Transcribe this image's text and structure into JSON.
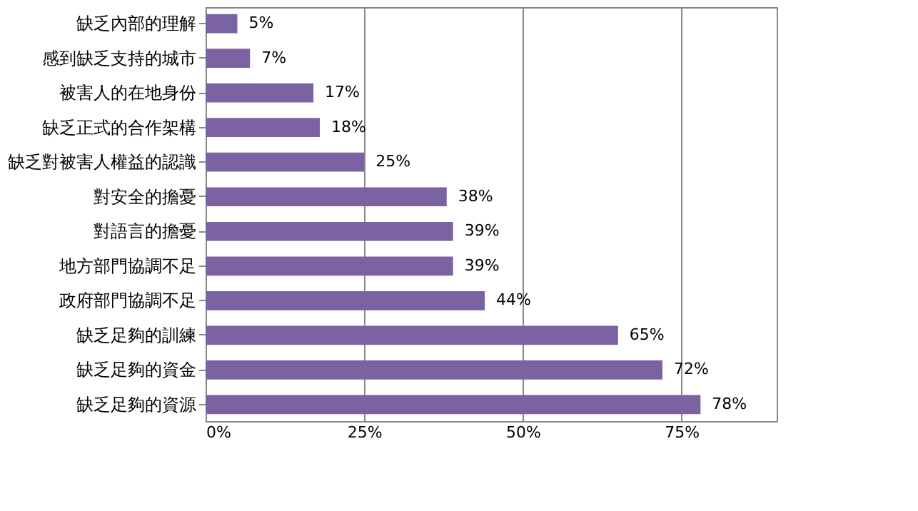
{
  "chart_data": {
    "type": "bar",
    "orientation": "horizontal",
    "categories": [
      "缺乏內部的理解",
      "感到缺乏支持的城市",
      "被害人的在地身份",
      "缺乏正式的合作架構",
      "缺乏對被害人權益的認識",
      "對安全的擔憂",
      "對語言的擔憂",
      "地方部門協調不足",
      "政府部門協調不足",
      "缺乏足夠的訓練",
      "缺乏足夠的資金",
      "缺乏足夠的資源"
    ],
    "values": [
      5,
      7,
      17,
      18,
      25,
      38,
      39,
      39,
      44,
      65,
      72,
      78
    ],
    "value_labels": [
      "5%",
      "7%",
      "17%",
      "18%",
      "25%",
      "38%",
      "39%",
      "39%",
      "44%",
      "65%",
      "72%",
      "78%"
    ],
    "color": "#7b62a3",
    "xlim": [
      0,
      90
    ],
    "xticks": [
      {
        "value": 0,
        "label": "0%"
      },
      {
        "value": 25,
        "label": "25%"
      },
      {
        "value": 50,
        "label": "50%"
      },
      {
        "value": 75,
        "label": "75%"
      }
    ],
    "grid": "x"
  }
}
